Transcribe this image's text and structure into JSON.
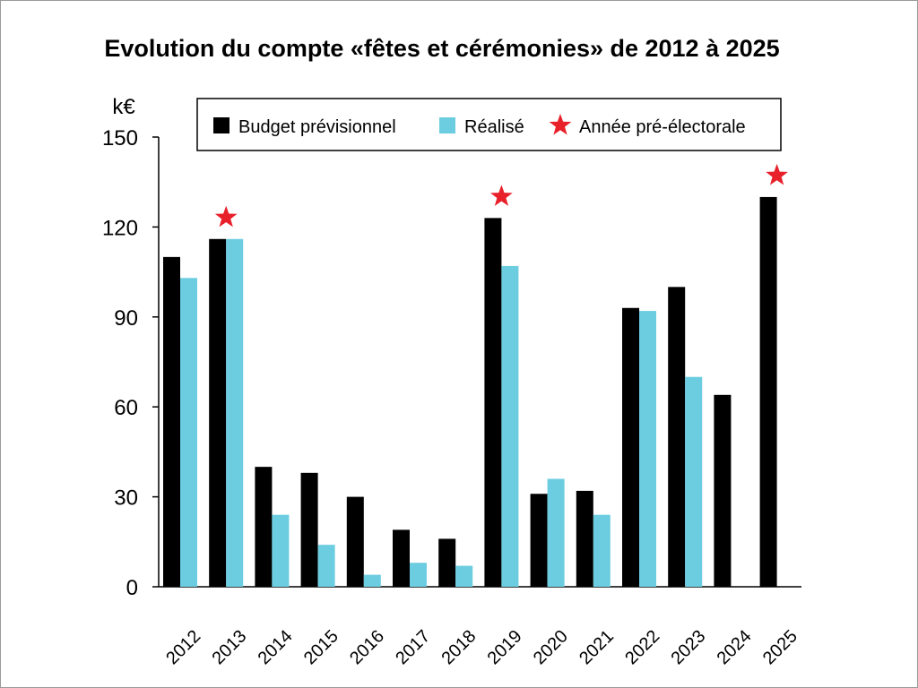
{
  "chart_data": {
    "type": "bar",
    "title": "Evolution du compte «fêtes et cérémonies» de 2012 à 2025",
    "ylabel": "k€",
    "xlabel": "",
    "ylim": [
      0,
      150
    ],
    "yticks": [
      "0",
      "30",
      "60",
      "90",
      "120",
      "150"
    ],
    "ytick_values": [
      0,
      30,
      60,
      90,
      120,
      150
    ],
    "categories": [
      "2012",
      "2013",
      "2014",
      "2015",
      "2016",
      "2017",
      "2018",
      "2019",
      "2020",
      "2021",
      "2022",
      "2023",
      "2024",
      "2025"
    ],
    "series": [
      {
        "name": "Budget prévisionnel",
        "color": "#000000",
        "values": [
          110,
          116,
          40,
          38,
          30,
          19,
          16,
          123,
          31,
          32,
          93,
          100,
          64,
          130
        ]
      },
      {
        "name": "Réalisé",
        "color": "#6ccde0",
        "values": [
          103,
          116,
          24,
          14,
          4,
          8,
          7,
          107,
          36,
          24,
          92,
          70,
          null,
          null
        ]
      }
    ],
    "markers": {
      "name": "Année pré-électorale",
      "color": "#e8202a",
      "categories": [
        "2013",
        "2019",
        "2025"
      ]
    },
    "grid": false,
    "legend": "top"
  }
}
